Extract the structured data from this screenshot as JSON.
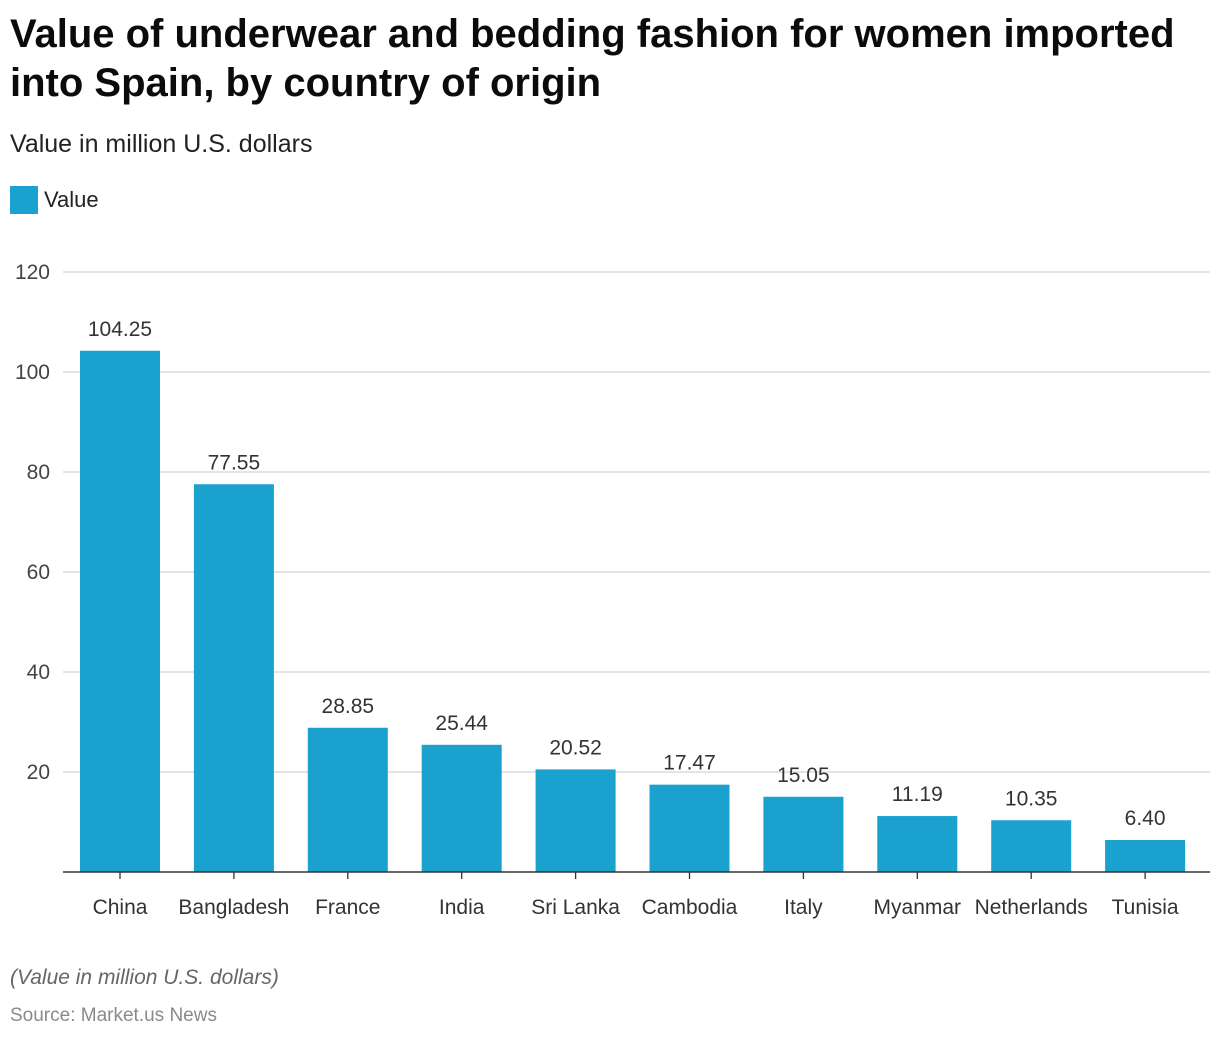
{
  "chart_data": {
    "type": "bar",
    "title": "Value of underwear and bedding fashion for women imported into Spain, by country of origin",
    "subtitle": "Value in million U.S. dollars",
    "legend": "Value",
    "categories": [
      "China",
      "Bangladesh",
      "France",
      "India",
      "Sri Lanka",
      "Cambodia",
      "Italy",
      "Myanmar",
      "Netherlands",
      "Tunisia"
    ],
    "values": [
      104.25,
      77.55,
      28.85,
      25.44,
      20.52,
      17.47,
      15.05,
      11.19,
      10.35,
      6.4
    ],
    "value_labels": [
      "104.25",
      "77.55",
      "28.85",
      "25.44",
      "20.52",
      "17.47",
      "15.05",
      "11.19",
      "10.35",
      "6.40"
    ],
    "yticks": [
      20,
      40,
      60,
      80,
      100,
      120
    ],
    "ylim": [
      0,
      120
    ],
    "xlabel": "",
    "ylabel": "",
    "grid": true,
    "legend_position": "top-left",
    "bar_color": "#1aa1cd"
  },
  "footer": {
    "note": "(Value in million U.S. dollars)",
    "source": "Source: Market.us News"
  }
}
